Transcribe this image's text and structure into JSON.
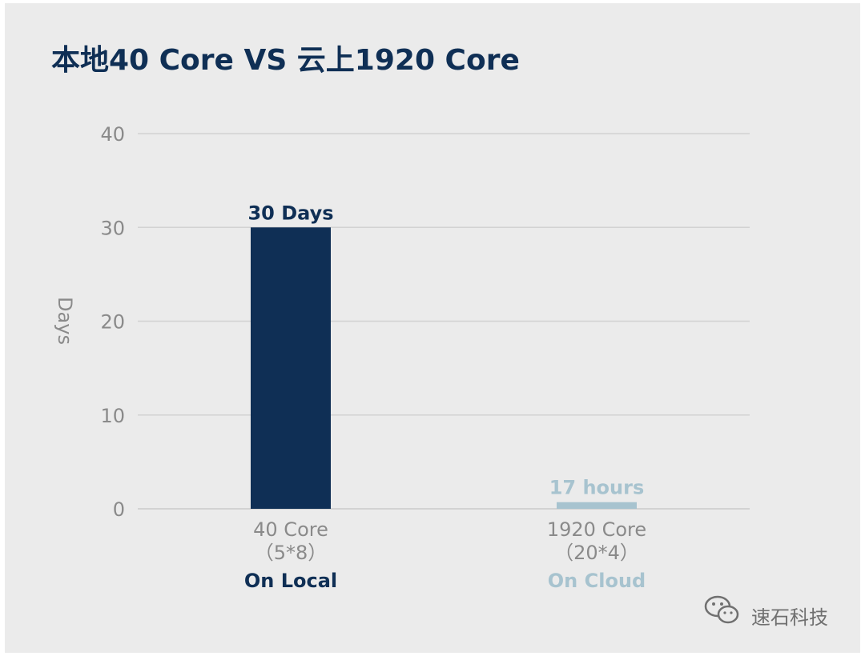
{
  "chart_data": {
    "type": "bar",
    "title": "本地40 Core VS 云上1920 Core",
    "ylabel": "Days",
    "ylim": [
      0,
      40
    ],
    "yticks": [
      0,
      10,
      20,
      30,
      40
    ],
    "grid": true,
    "categories": [
      {
        "line1": "40 Core",
        "line2": "（5*8）",
        "line3": "On Local"
      },
      {
        "line1": "1920 Core",
        "line2": "（20*4）",
        "line3": "On Cloud"
      }
    ],
    "values": [
      30,
      0.708
    ],
    "data_labels": [
      "30 Days",
      "17 hours"
    ],
    "colors": [
      "#0f2f55",
      "#a7c3cf"
    ]
  },
  "watermark": {
    "text": "速石科技",
    "icon": "wechat-icon"
  }
}
